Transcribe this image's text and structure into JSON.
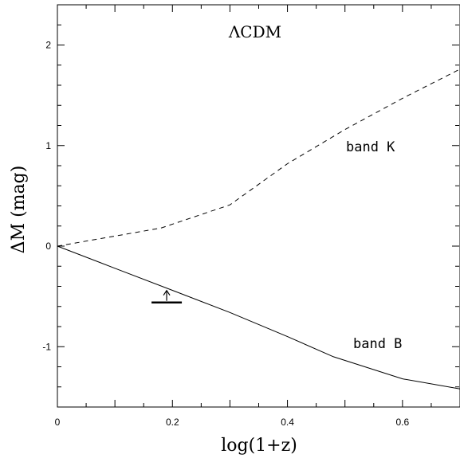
{
  "chart_data": {
    "type": "line",
    "title": "ΛCDM",
    "xlabel": "log(1+z)",
    "ylabel": "ΔM (mag)",
    "xlim": [
      0,
      0.7
    ],
    "ylim": [
      -1.6,
      2.4
    ],
    "x_ticks": [
      {
        "value": 0,
        "label": "0"
      },
      {
        "value": 0.2,
        "label": "0.2"
      },
      {
        "value": 0.4,
        "label": "0.4"
      },
      {
        "value": 0.6,
        "label": "0.6"
      }
    ],
    "y_ticks": [
      {
        "value": -1,
        "label": "-1"
      },
      {
        "value": 0,
        "label": "0"
      },
      {
        "value": 1,
        "label": "1"
      },
      {
        "value": 2,
        "label": "2"
      }
    ],
    "grid": false,
    "series": [
      {
        "name": "band K",
        "style": "dashed",
        "x": [
          0,
          0.18,
          0.3,
          0.4,
          0.5,
          0.6,
          0.7
        ],
        "y": [
          0,
          0.18,
          0.41,
          0.82,
          1.16,
          1.47,
          1.76
        ]
      },
      {
        "name": "band B",
        "style": "solid",
        "x": [
          0,
          0.1,
          0.2,
          0.3,
          0.4,
          0.48,
          0.6,
          0.7
        ],
        "y": [
          0,
          -0.22,
          -0.44,
          -0.66,
          -0.9,
          -1.1,
          -1.32,
          -1.42
        ]
      }
    ],
    "annotations": [
      {
        "type": "lower-limit",
        "x": 0.19,
        "y": -0.56,
        "arrow": "up"
      }
    ]
  }
}
